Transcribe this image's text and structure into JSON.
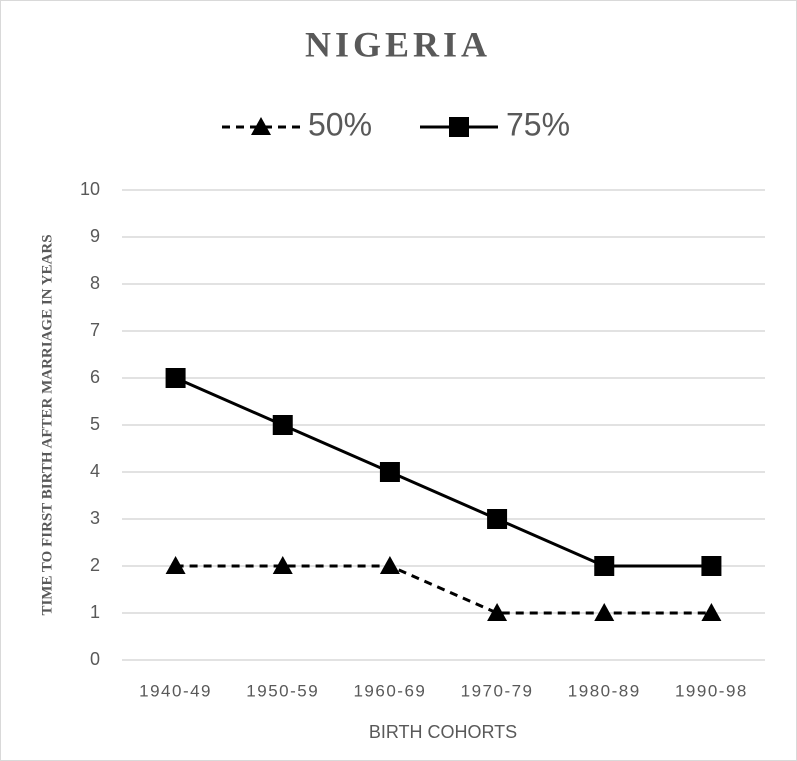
{
  "chart_data": {
    "type": "line",
    "title": "NIGERIA",
    "x_label": "BIRTH COHORTS",
    "y_label": "TIME TO FIRST BIRTH AFTER MARRIAGE IN YEARS",
    "categories": [
      "1940-49",
      "1950-59",
      "1960-69",
      "1970-79",
      "1980-89",
      "1990-98"
    ],
    "series": [
      {
        "name": "50%",
        "color": "#000000",
        "line_style": "dashed",
        "marker": "triangle",
        "values": [
          2,
          2,
          2,
          1,
          1,
          1
        ]
      },
      {
        "name": "75%",
        "color": "#000000",
        "line_style": "solid",
        "marker": "square",
        "values": [
          6,
          5,
          4,
          3,
          2,
          2
        ]
      }
    ],
    "ylim": [
      0,
      10
    ],
    "yticks": [
      0,
      1,
      2,
      3,
      4,
      5,
      6,
      7,
      8,
      9,
      10
    ],
    "grid": true,
    "legend": "top"
  }
}
